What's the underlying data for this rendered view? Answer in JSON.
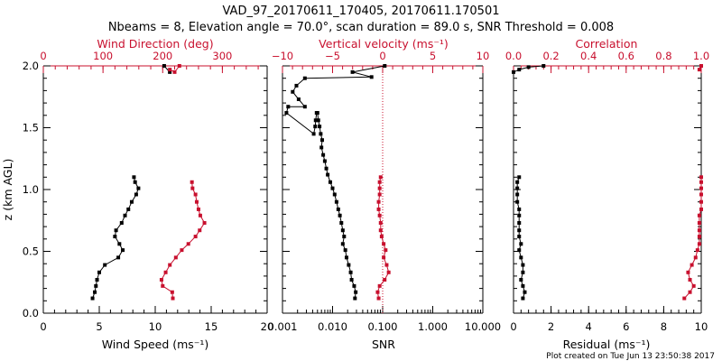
{
  "figure": {
    "title_line1": "VAD_97_20170611_170405, 20170611.170501",
    "title_line2": "Nbeams = 8, Elevation angle = 70.0°, scan duration = 89.0 s, SNR Threshold = 0.008",
    "footer": "Plot created on Tue Jun 13 23:50:38 2017"
  },
  "colors": {
    "black": "#000000",
    "red": "#c8102e"
  },
  "chart_data": [
    {
      "type": "line",
      "panel": "wind",
      "ylabel": "z (km AGL)",
      "ylim": [
        0,
        2
      ],
      "yticks": [
        "0.0",
        "0.5",
        "1.0",
        "1.5",
        "2.0"
      ],
      "xlabel": "Wind Speed (ms⁻¹)",
      "xlim": [
        0,
        20
      ],
      "xticks": [
        "0",
        "5",
        "10",
        "15",
        "20"
      ],
      "top_xlabel": "Wind Direction (deg)",
      "top_xlim": [
        0,
        375
      ],
      "top_xticks": [
        "0",
        "100",
        "200",
        "300"
      ],
      "series": [
        {
          "name": "Wind Speed",
          "color": "#000000",
          "axis": "bottom",
          "x": [
            4.4,
            4.6,
            4.7,
            4.8,
            5.0,
            5.5,
            6.7,
            7.1,
            6.8,
            6.4,
            6.5,
            7.0,
            7.3,
            7.6,
            7.9,
            8.3,
            8.5,
            8.2,
            8.1
          ],
          "z": [
            0.12,
            0.17,
            0.22,
            0.27,
            0.33,
            0.39,
            0.45,
            0.51,
            0.56,
            0.62,
            0.67,
            0.73,
            0.79,
            0.84,
            0.9,
            0.96,
            1.01,
            1.06,
            1.1
          ]
        },
        {
          "name": "Wind Direction (low)",
          "color": "#c8102e",
          "axis": "top",
          "x": [
            217,
            216,
            200,
            198,
            205,
            212,
            222,
            232,
            243,
            255,
            262,
            270,
            263,
            260,
            257,
            255,
            250,
            249
          ],
          "z": [
            0.12,
            0.17,
            0.22,
            0.27,
            0.33,
            0.39,
            0.45,
            0.51,
            0.56,
            0.62,
            0.67,
            0.73,
            0.79,
            0.84,
            0.9,
            0.96,
            1.01,
            1.06
          ]
        },
        {
          "name": "Wind Speed (top)",
          "color": "#000000",
          "axis": "bottom",
          "x": [
            10.8,
            11.3
          ],
          "z": [
            2.0,
            1.95
          ]
        },
        {
          "name": "Wind Direction (top)",
          "color": "#c8102e",
          "axis": "top",
          "x": [
            212,
            220,
            228
          ],
          "z": [
            1.97,
            1.95,
            2.0
          ]
        }
      ]
    },
    {
      "type": "line",
      "panel": "snr",
      "ylim": [
        0,
        2
      ],
      "xlabel": "SNR",
      "xscale": "log",
      "xlim": [
        0.001,
        10
      ],
      "xticks": [
        "0.001",
        "0.010",
        "0.100",
        "1.000",
        "10.000"
      ],
      "top_xlabel": "Vertical velocity (ms⁻¹)",
      "top_xlim": [
        -10,
        10
      ],
      "top_xticks": [
        "−10",
        "−5",
        "0",
        "5",
        "10"
      ],
      "reference_line": {
        "axis": "top",
        "x": 0,
        "style": "dotted",
        "color": "#c8102e"
      },
      "series": [
        {
          "name": "SNR",
          "color": "#000000",
          "axis": "bottom",
          "x": [
            0.028,
            0.029,
            0.027,
            0.024,
            0.023,
            0.021,
            0.019,
            0.018,
            0.016,
            0.017,
            0.016,
            0.015,
            0.014,
            0.013,
            0.012,
            0.011,
            0.01,
            0.009,
            0.008,
            0.0075,
            0.007,
            0.0065,
            0.006,
            0.0062,
            0.0058,
            0.0055,
            0.0052,
            0.005,
            0.0048,
            0.0046,
            0.0045,
            0.0042,
            0.0012,
            0.0013,
            0.0028,
            0.0021,
            0.0016,
            0.0019,
            0.0028,
            0.06,
            0.025,
            0.11
          ],
          "z": [
            0.12,
            0.17,
            0.22,
            0.27,
            0.33,
            0.39,
            0.45,
            0.51,
            0.56,
            0.62,
            0.67,
            0.73,
            0.79,
            0.84,
            0.9,
            0.96,
            1.01,
            1.06,
            1.12,
            1.17,
            1.23,
            1.28,
            1.34,
            1.4,
            1.45,
            1.51,
            1.56,
            1.62,
            1.62,
            1.56,
            1.51,
            1.45,
            1.62,
            1.67,
            1.67,
            1.73,
            1.79,
            1.84,
            1.9,
            1.91,
            1.95,
            2.0
          ]
        },
        {
          "name": "Vertical velocity",
          "color": "#c8102e",
          "axis": "top",
          "x": [
            -0.4,
            -0.5,
            -0.3,
            0.2,
            0.6,
            0.4,
            0.1,
            0.3,
            0.1,
            -0.1,
            -0.2,
            -0.2,
            -0.3,
            -0.4,
            -0.4,
            -0.3,
            -0.3,
            -0.3,
            -0.2
          ],
          "z": [
            0.12,
            0.17,
            0.22,
            0.27,
            0.33,
            0.39,
            0.45,
            0.51,
            0.56,
            0.62,
            0.67,
            0.73,
            0.79,
            0.84,
            0.9,
            0.96,
            1.01,
            1.06,
            1.1
          ]
        }
      ]
    },
    {
      "type": "line",
      "panel": "residual",
      "ylim": [
        0,
        2
      ],
      "xlabel": "Residual (ms⁻¹)",
      "xlim": [
        0,
        10
      ],
      "xticks": [
        "0",
        "2",
        "4",
        "6",
        "8",
        "10"
      ],
      "top_xlabel": "Correlation",
      "top_xlim": [
        0,
        1
      ],
      "top_xticks": [
        "0.0",
        "0.2",
        "0.4",
        "0.6",
        "0.8",
        "1.0"
      ],
      "series": [
        {
          "name": "Residual",
          "color": "#000000",
          "axis": "bottom",
          "x": [
            0.5,
            0.6,
            0.5,
            0.4,
            0.5,
            0.5,
            0.4,
            0.3,
            0.4,
            0.3,
            0.3,
            0.3,
            0.3,
            0.3,
            0.2,
            0.2,
            0.2,
            0.2,
            0.3
          ],
          "z": [
            0.12,
            0.17,
            0.22,
            0.27,
            0.33,
            0.39,
            0.45,
            0.51,
            0.56,
            0.62,
            0.67,
            0.73,
            0.79,
            0.84,
            0.9,
            0.96,
            1.01,
            1.06,
            1.1
          ]
        },
        {
          "name": "Correlation",
          "color": "#c8102e",
          "axis": "top",
          "x": [
            0.91,
            0.94,
            0.96,
            0.94,
            0.93,
            0.95,
            0.97,
            0.98,
            0.99,
            0.99,
            0.99,
            0.99,
            0.99,
            1.0,
            1.0,
            1.0,
            1.0,
            1.0,
            1.0
          ],
          "z": [
            0.12,
            0.17,
            0.22,
            0.27,
            0.33,
            0.39,
            0.45,
            0.51,
            0.56,
            0.62,
            0.67,
            0.73,
            0.79,
            0.84,
            0.9,
            0.96,
            1.01,
            1.06,
            1.1
          ]
        },
        {
          "name": "Residual (top)",
          "color": "#000000",
          "axis": "bottom",
          "x": [
            0.0,
            0.3,
            0.8,
            1.6
          ],
          "z": [
            1.95,
            1.97,
            1.99,
            2.0
          ]
        },
        {
          "name": "Correlation (top)",
          "color": "#c8102e",
          "axis": "top",
          "x": [
            0.99,
            1.0
          ],
          "z": [
            1.97,
            2.0
          ]
        }
      ]
    }
  ]
}
